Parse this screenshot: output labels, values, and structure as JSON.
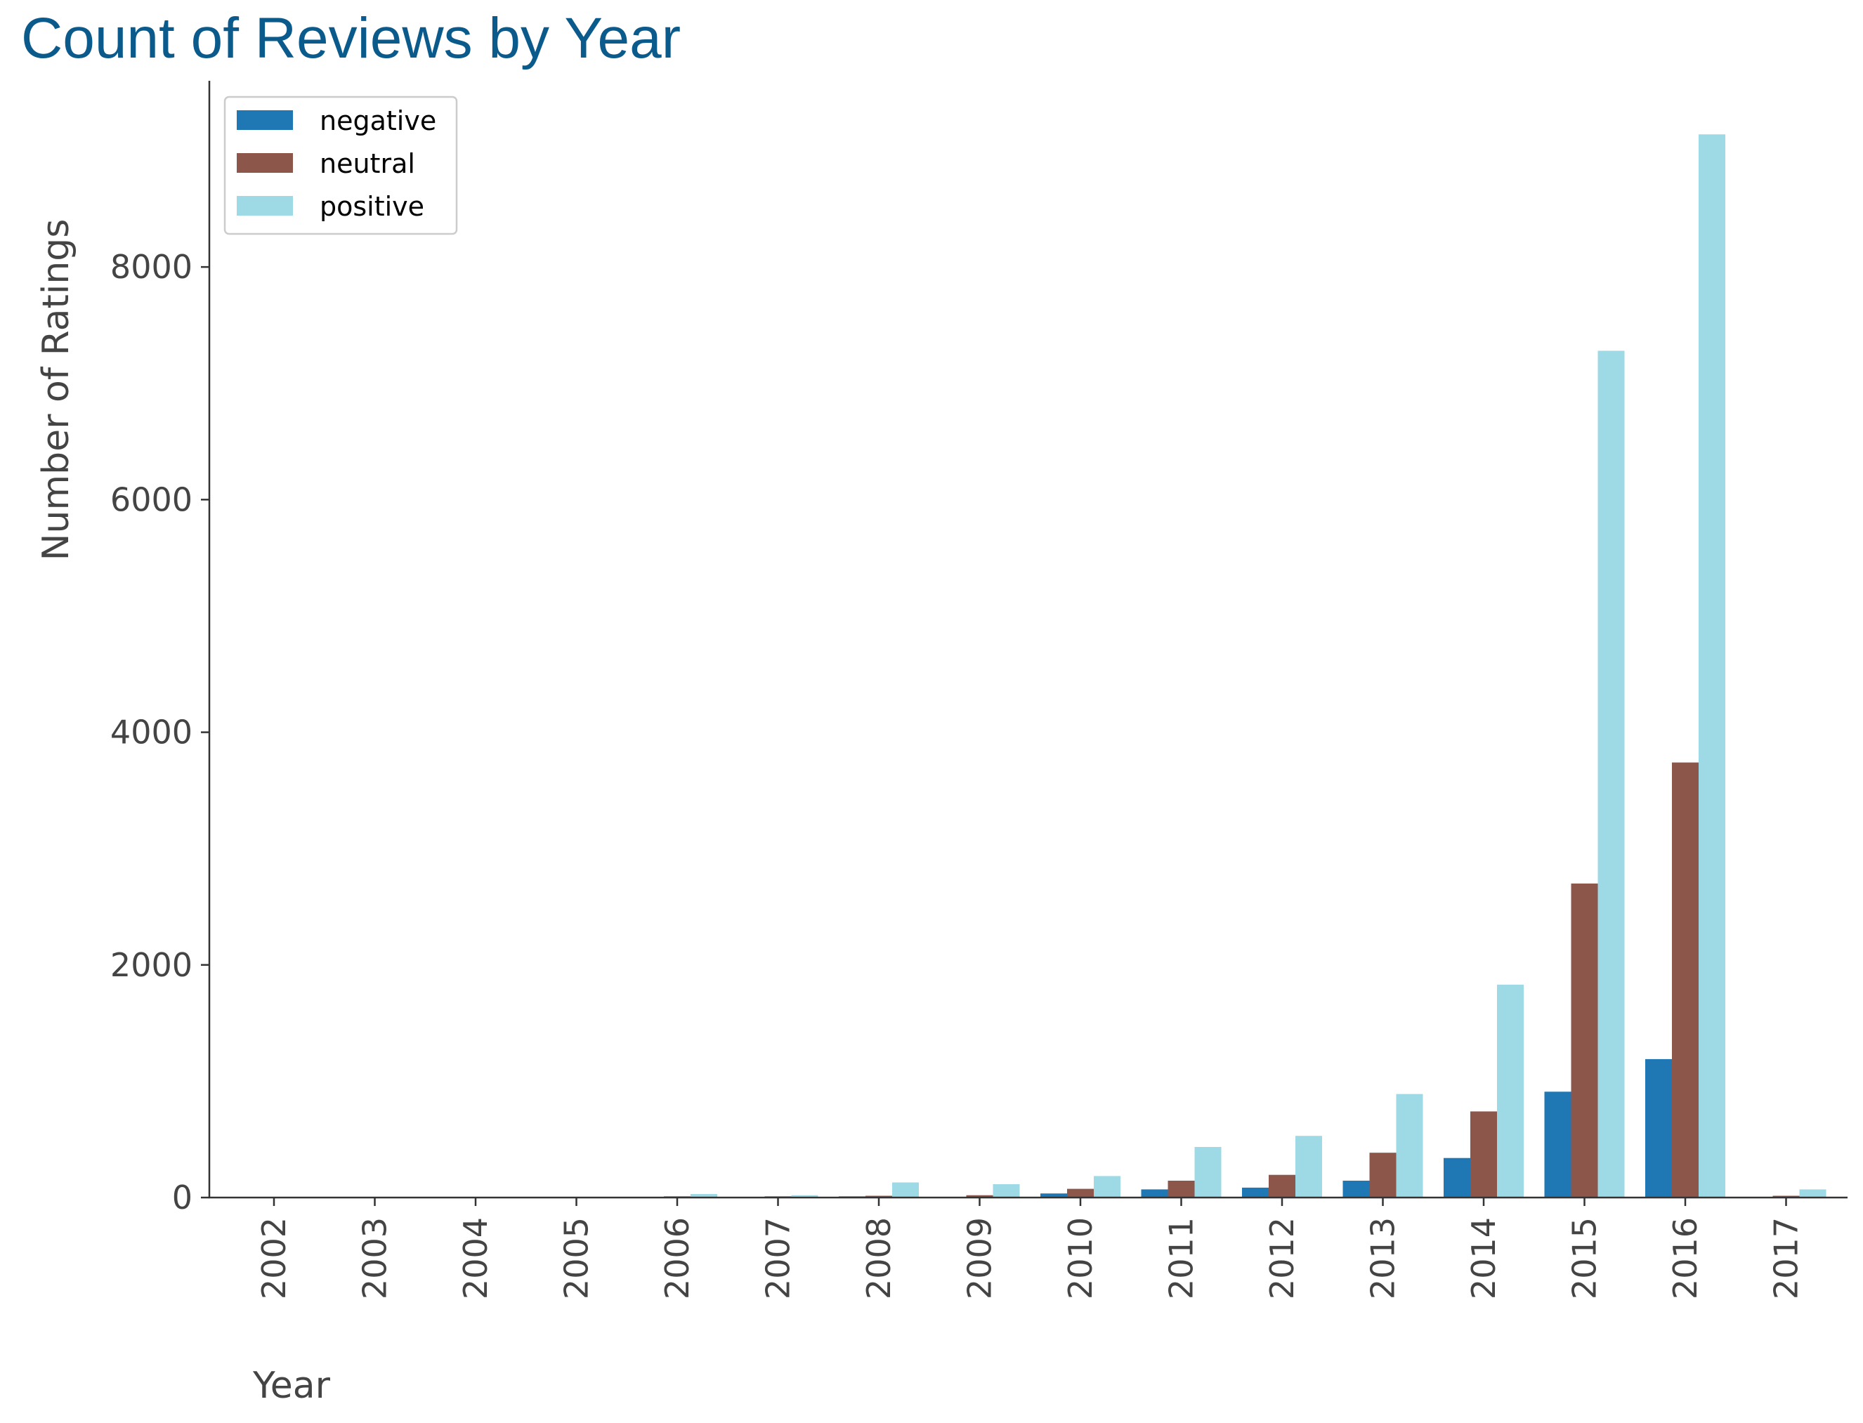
{
  "chart_data": {
    "type": "bar",
    "title": "Count of Reviews by Year",
    "xlabel": "Year",
    "ylabel": "Number of Ratings",
    "categories": [
      "2002",
      "2003",
      "2004",
      "2005",
      "2006",
      "2007",
      "2008",
      "2009",
      "2010",
      "2011",
      "2012",
      "2013",
      "2014",
      "2015",
      "2016",
      "2017"
    ],
    "series": [
      {
        "name": "negative",
        "color": "#1f77b4",
        "values": [
          0,
          0,
          0,
          0,
          0,
          0,
          10,
          5,
          35,
          70,
          85,
          145,
          340,
          910,
          1190,
          0
        ]
      },
      {
        "name": "neutral",
        "color": "#8c564b",
        "values": [
          0,
          0,
          0,
          5,
          10,
          10,
          15,
          20,
          75,
          145,
          195,
          385,
          740,
          2700,
          3740,
          15
        ]
      },
      {
        "name": "positive",
        "color": "#9edae5",
        "values": [
          0,
          0,
          0,
          0,
          30,
          20,
          130,
          115,
          185,
          435,
          530,
          890,
          1830,
          7280,
          9140,
          70
        ]
      }
    ],
    "yticks": [
      "0",
      "2000",
      "4000",
      "6000",
      "8000"
    ],
    "ylim": [
      0,
      9600
    ],
    "legend_position": "top-left",
    "grid": false
  }
}
